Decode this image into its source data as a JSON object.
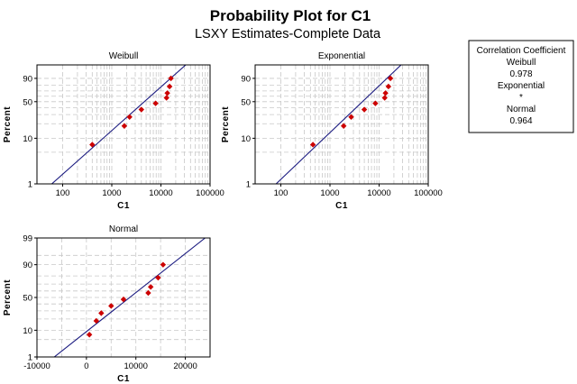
{
  "chart_data": {
    "title": "Probability Plot for C1",
    "subtitle": "LSXY Estimates-Complete Data",
    "legend": {
      "title": "Correlation Coefficient",
      "placement": "top-right",
      "entries": [
        {
          "label": "Weibull",
          "value": "0.978"
        },
        {
          "label": "Exponential",
          "value": "*"
        },
        {
          "label": "Normal",
          "value": "0.964"
        }
      ]
    },
    "colors": {
      "points": "#cc0000",
      "fit_line": "#1a1a80",
      "grid": "#c8c8c8",
      "frame": "#000000"
    },
    "panels": [
      {
        "name": "weibull",
        "title": "Weibull",
        "type": "scatter",
        "xscale": "log",
        "yscale": "weibull",
        "xlabel": "C1",
        "ylabel": "Percent",
        "xlim": [
          30,
          100000
        ],
        "ylim": [
          1,
          99
        ],
        "xticks": [
          100,
          1000,
          10000,
          100000
        ],
        "xtick_labels": [
          "100",
          "1000",
          "10000",
          "100000"
        ],
        "x_minor_grid": [
          200,
          300,
          400,
          500,
          600,
          700,
          800,
          900,
          2000,
          3000,
          4000,
          5000,
          6000,
          7000,
          8000,
          9000,
          20000,
          30000,
          40000,
          50000,
          60000,
          70000,
          80000,
          90000
        ],
        "yticks": [
          1,
          10,
          50,
          90
        ],
        "ytick_labels": [
          "1",
          "10",
          "50",
          "90"
        ],
        "y_grid": [
          5,
          10,
          20,
          30,
          40,
          50,
          60,
          70,
          80,
          90
        ],
        "grid": true,
        "points": [
          {
            "x": 400,
            "y": 7.3
          },
          {
            "x": 1800,
            "y": 18
          },
          {
            "x": 2300,
            "y": 27
          },
          {
            "x": 4000,
            "y": 37
          },
          {
            "x": 7800,
            "y": 47
          },
          {
            "x": 13000,
            "y": 57
          },
          {
            "x": 13500,
            "y": 66
          },
          {
            "x": 15000,
            "y": 78
          },
          {
            "x": 16000,
            "y": 90
          }
        ],
        "fit_line": [
          [
            60,
            1
          ],
          [
            32000,
            99
          ]
        ]
      },
      {
        "name": "exponential",
        "title": "Exponential",
        "type": "scatter",
        "xscale": "log",
        "yscale": "weibull",
        "xlabel": "C1",
        "ylabel": "Percent",
        "xlim": [
          30,
          100000
        ],
        "ylim": [
          1,
          99
        ],
        "xticks": [
          100,
          1000,
          10000,
          100000
        ],
        "xtick_labels": [
          "100",
          "1000",
          "10000",
          "100000"
        ],
        "x_minor_grid": [
          200,
          300,
          400,
          500,
          600,
          700,
          800,
          900,
          2000,
          3000,
          4000,
          5000,
          6000,
          7000,
          8000,
          9000,
          20000,
          30000,
          40000,
          50000,
          60000,
          70000,
          80000,
          90000
        ],
        "yticks": [
          1,
          10,
          50,
          90
        ],
        "ytick_labels": [
          "1",
          "10",
          "50",
          "90"
        ],
        "y_grid": [
          5,
          10,
          20,
          30,
          40,
          50,
          60,
          70,
          80,
          90
        ],
        "grid": true,
        "points": [
          {
            "x": 450,
            "y": 7.3
          },
          {
            "x": 1900,
            "y": 18
          },
          {
            "x": 2700,
            "y": 27
          },
          {
            "x": 5000,
            "y": 37
          },
          {
            "x": 8400,
            "y": 47
          },
          {
            "x": 13000,
            "y": 57
          },
          {
            "x": 13500,
            "y": 66
          },
          {
            "x": 15500,
            "y": 78
          },
          {
            "x": 17000,
            "y": 90
          }
        ],
        "fit_line": [
          [
            80,
            1
          ],
          [
            28000,
            99
          ]
        ]
      },
      {
        "name": "normal",
        "title": "Normal",
        "type": "scatter",
        "xscale": "linear",
        "yscale": "normal",
        "xlabel": "C1",
        "ylabel": "Percent",
        "xlim": [
          -10000,
          25000
        ],
        "ylim": [
          1,
          99
        ],
        "xticks": [
          -10000,
          0,
          10000,
          20000
        ],
        "xtick_labels": [
          "-10000",
          "0",
          "10000",
          "20000"
        ],
        "x_minor_grid": [
          -5000,
          5000,
          15000
        ],
        "yticks": [
          1,
          10,
          50,
          90,
          99
        ],
        "ytick_labels": [
          "1",
          "10",
          "50",
          "90",
          "99"
        ],
        "y_grid": [
          5,
          10,
          20,
          30,
          40,
          50,
          60,
          70,
          80,
          90,
          95
        ],
        "grid": true,
        "points": [
          {
            "x": 600,
            "y": 7.3
          },
          {
            "x": 2000,
            "y": 18
          },
          {
            "x": 3000,
            "y": 27
          },
          {
            "x": 5000,
            "y": 37
          },
          {
            "x": 7500,
            "y": 47
          },
          {
            "x": 12500,
            "y": 57
          },
          {
            "x": 13000,
            "y": 66
          },
          {
            "x": 14500,
            "y": 78
          },
          {
            "x": 15500,
            "y": 90
          }
        ],
        "fit_line": [
          [
            -6500,
            1
          ],
          [
            24000,
            99
          ]
        ]
      }
    ]
  }
}
